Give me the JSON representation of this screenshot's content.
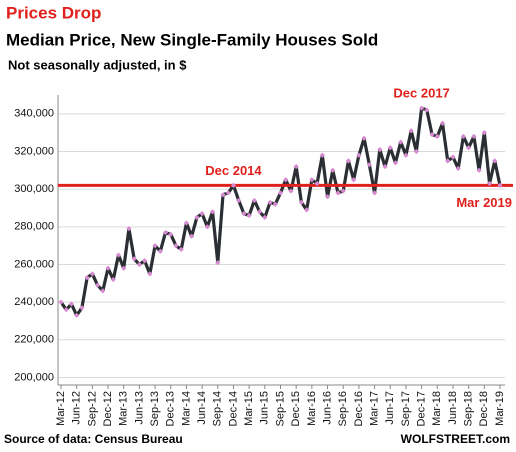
{
  "chart_data": {
    "type": "line",
    "title": "Prices Drop",
    "subtitle": "Median Price, New Single-Family Houses Sold",
    "note": "Not seasonally adjusted, in $",
    "source": "Source of data: Census Bureau",
    "credit": "WOLFSTREET.com",
    "categories": [
      "Mar-12",
      null,
      null,
      "Jun-12",
      null,
      null,
      "Sep-12",
      null,
      null,
      "Dec-12",
      null,
      null,
      "Mar-13",
      null,
      null,
      "Jun-13",
      null,
      null,
      "Sep-13",
      null,
      null,
      "Dec-13",
      null,
      null,
      "Mar-14",
      null,
      null,
      "Jun-14",
      null,
      null,
      "Sep-14",
      null,
      null,
      "Dec-14",
      null,
      null,
      "Mar-15",
      null,
      null,
      "Jun-15",
      null,
      null,
      "Sep-15",
      null,
      null,
      "Dec-15",
      null,
      null,
      "Mar-16",
      null,
      null,
      "Jun-16",
      null,
      null,
      "Sep-16",
      null,
      null,
      "Dec-16",
      null,
      null,
      "Mar-17",
      null,
      null,
      "Jun-17",
      null,
      null,
      "Sep-17",
      null,
      null,
      "Dec-17",
      null,
      null,
      "Mar-18",
      null,
      null,
      "Jun-18",
      null,
      null,
      "Sep-18",
      null,
      null,
      "Dec-18",
      null,
      null,
      "Mar-19"
    ],
    "series": [
      {
        "name": "Median Price",
        "color": "#2b2f33",
        "marker_color": "#d58ad0",
        "values": [
          240000,
          236000,
          239000,
          233000,
          237000,
          253000,
          255000,
          249000,
          246000,
          258000,
          252000,
          265000,
          258000,
          279000,
          263000,
          260000,
          262000,
          255000,
          270000,
          267000,
          277000,
          276000,
          270000,
          268000,
          282000,
          275000,
          285000,
          287000,
          280000,
          288000,
          261000,
          297000,
          298000,
          302000,
          294000,
          287000,
          286000,
          294000,
          288000,
          285000,
          293000,
          292000,
          298000,
          305000,
          299000,
          312000,
          293000,
          289000,
          305000,
          303000,
          318000,
          296000,
          310000,
          298000,
          299000,
          315000,
          305000,
          318000,
          327000,
          313000,
          298000,
          321000,
          312000,
          322000,
          314000,
          325000,
          318000,
          331000,
          320000,
          343000,
          342000,
          329000,
          328000,
          335000,
          315000,
          317000,
          311000,
          328000,
          322000,
          328000,
          310000,
          330000,
          303000,
          315000,
          302000
        ]
      }
    ],
    "reference_line": {
      "value": 302000,
      "color": "#e0201c"
    },
    "annotations": [
      {
        "text": "Dec 2014",
        "index": 33
      },
      {
        "text": "Dec 2017",
        "index": 69
      },
      {
        "text": "Mar 2019",
        "index": 84
      }
    ],
    "ylim": [
      196000,
      350000
    ],
    "yticks": [
      {
        "value": 200000,
        "label": "200,000"
      },
      {
        "value": 220000,
        "label": "220,000"
      },
      {
        "value": 240000,
        "label": "240,000"
      },
      {
        "value": 260000,
        "label": "260,000"
      },
      {
        "value": 280000,
        "label": "280,000"
      },
      {
        "value": 300000,
        "label": "300,000"
      },
      {
        "value": 320000,
        "label": "320,000"
      },
      {
        "value": 340000,
        "label": "340,000"
      }
    ],
    "grid": true
  }
}
